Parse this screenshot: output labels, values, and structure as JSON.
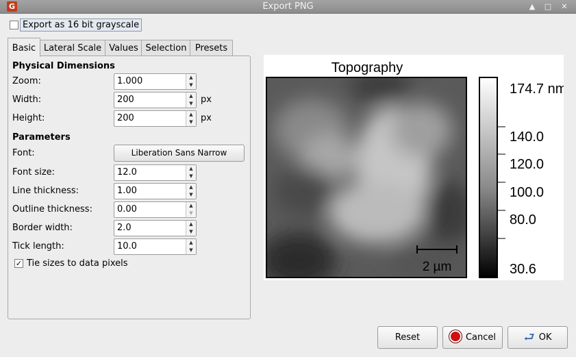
{
  "window": {
    "title": "Export PNG"
  },
  "export16": {
    "label": "Export as 16 bit grayscale",
    "checked": false
  },
  "tabs": [
    {
      "label": "Basic",
      "active": true
    },
    {
      "label": "Lateral Scale"
    },
    {
      "label": "Values"
    },
    {
      "label": "Selection"
    },
    {
      "label": "Presets"
    }
  ],
  "physical": {
    "heading": "Physical Dimensions",
    "zoom": {
      "label": "Zoom:",
      "value": "1.000"
    },
    "width": {
      "label": "Width:",
      "value": "200",
      "unit": "px"
    },
    "height": {
      "label": "Height:",
      "value": "200",
      "unit": "px"
    }
  },
  "parameters": {
    "heading": "Parameters",
    "font": {
      "label": "Font:",
      "value": "Liberation Sans Narrow"
    },
    "font_size": {
      "label": "Font size:",
      "value": "12.0"
    },
    "line_thickness": {
      "label": "Line thickness:",
      "value": "1.00"
    },
    "outline_thickness": {
      "label": "Outline thickness:",
      "value": "0.00"
    },
    "border_width": {
      "label": "Border width:",
      "value": "2.0"
    },
    "tick_length": {
      "label": "Tick length:",
      "value": "10.0"
    },
    "tie_sizes": {
      "label": "Tie sizes to data pixels",
      "checked": true
    }
  },
  "preview": {
    "title": "Topography",
    "scalebar_label": "2 µm",
    "colorbar_labels": [
      "174.7 nm",
      "140.0",
      "120.0",
      "100.0",
      "80.0",
      "30.6"
    ]
  },
  "buttons": {
    "reset": "Reset",
    "cancel": "Cancel",
    "ok": "OK"
  }
}
